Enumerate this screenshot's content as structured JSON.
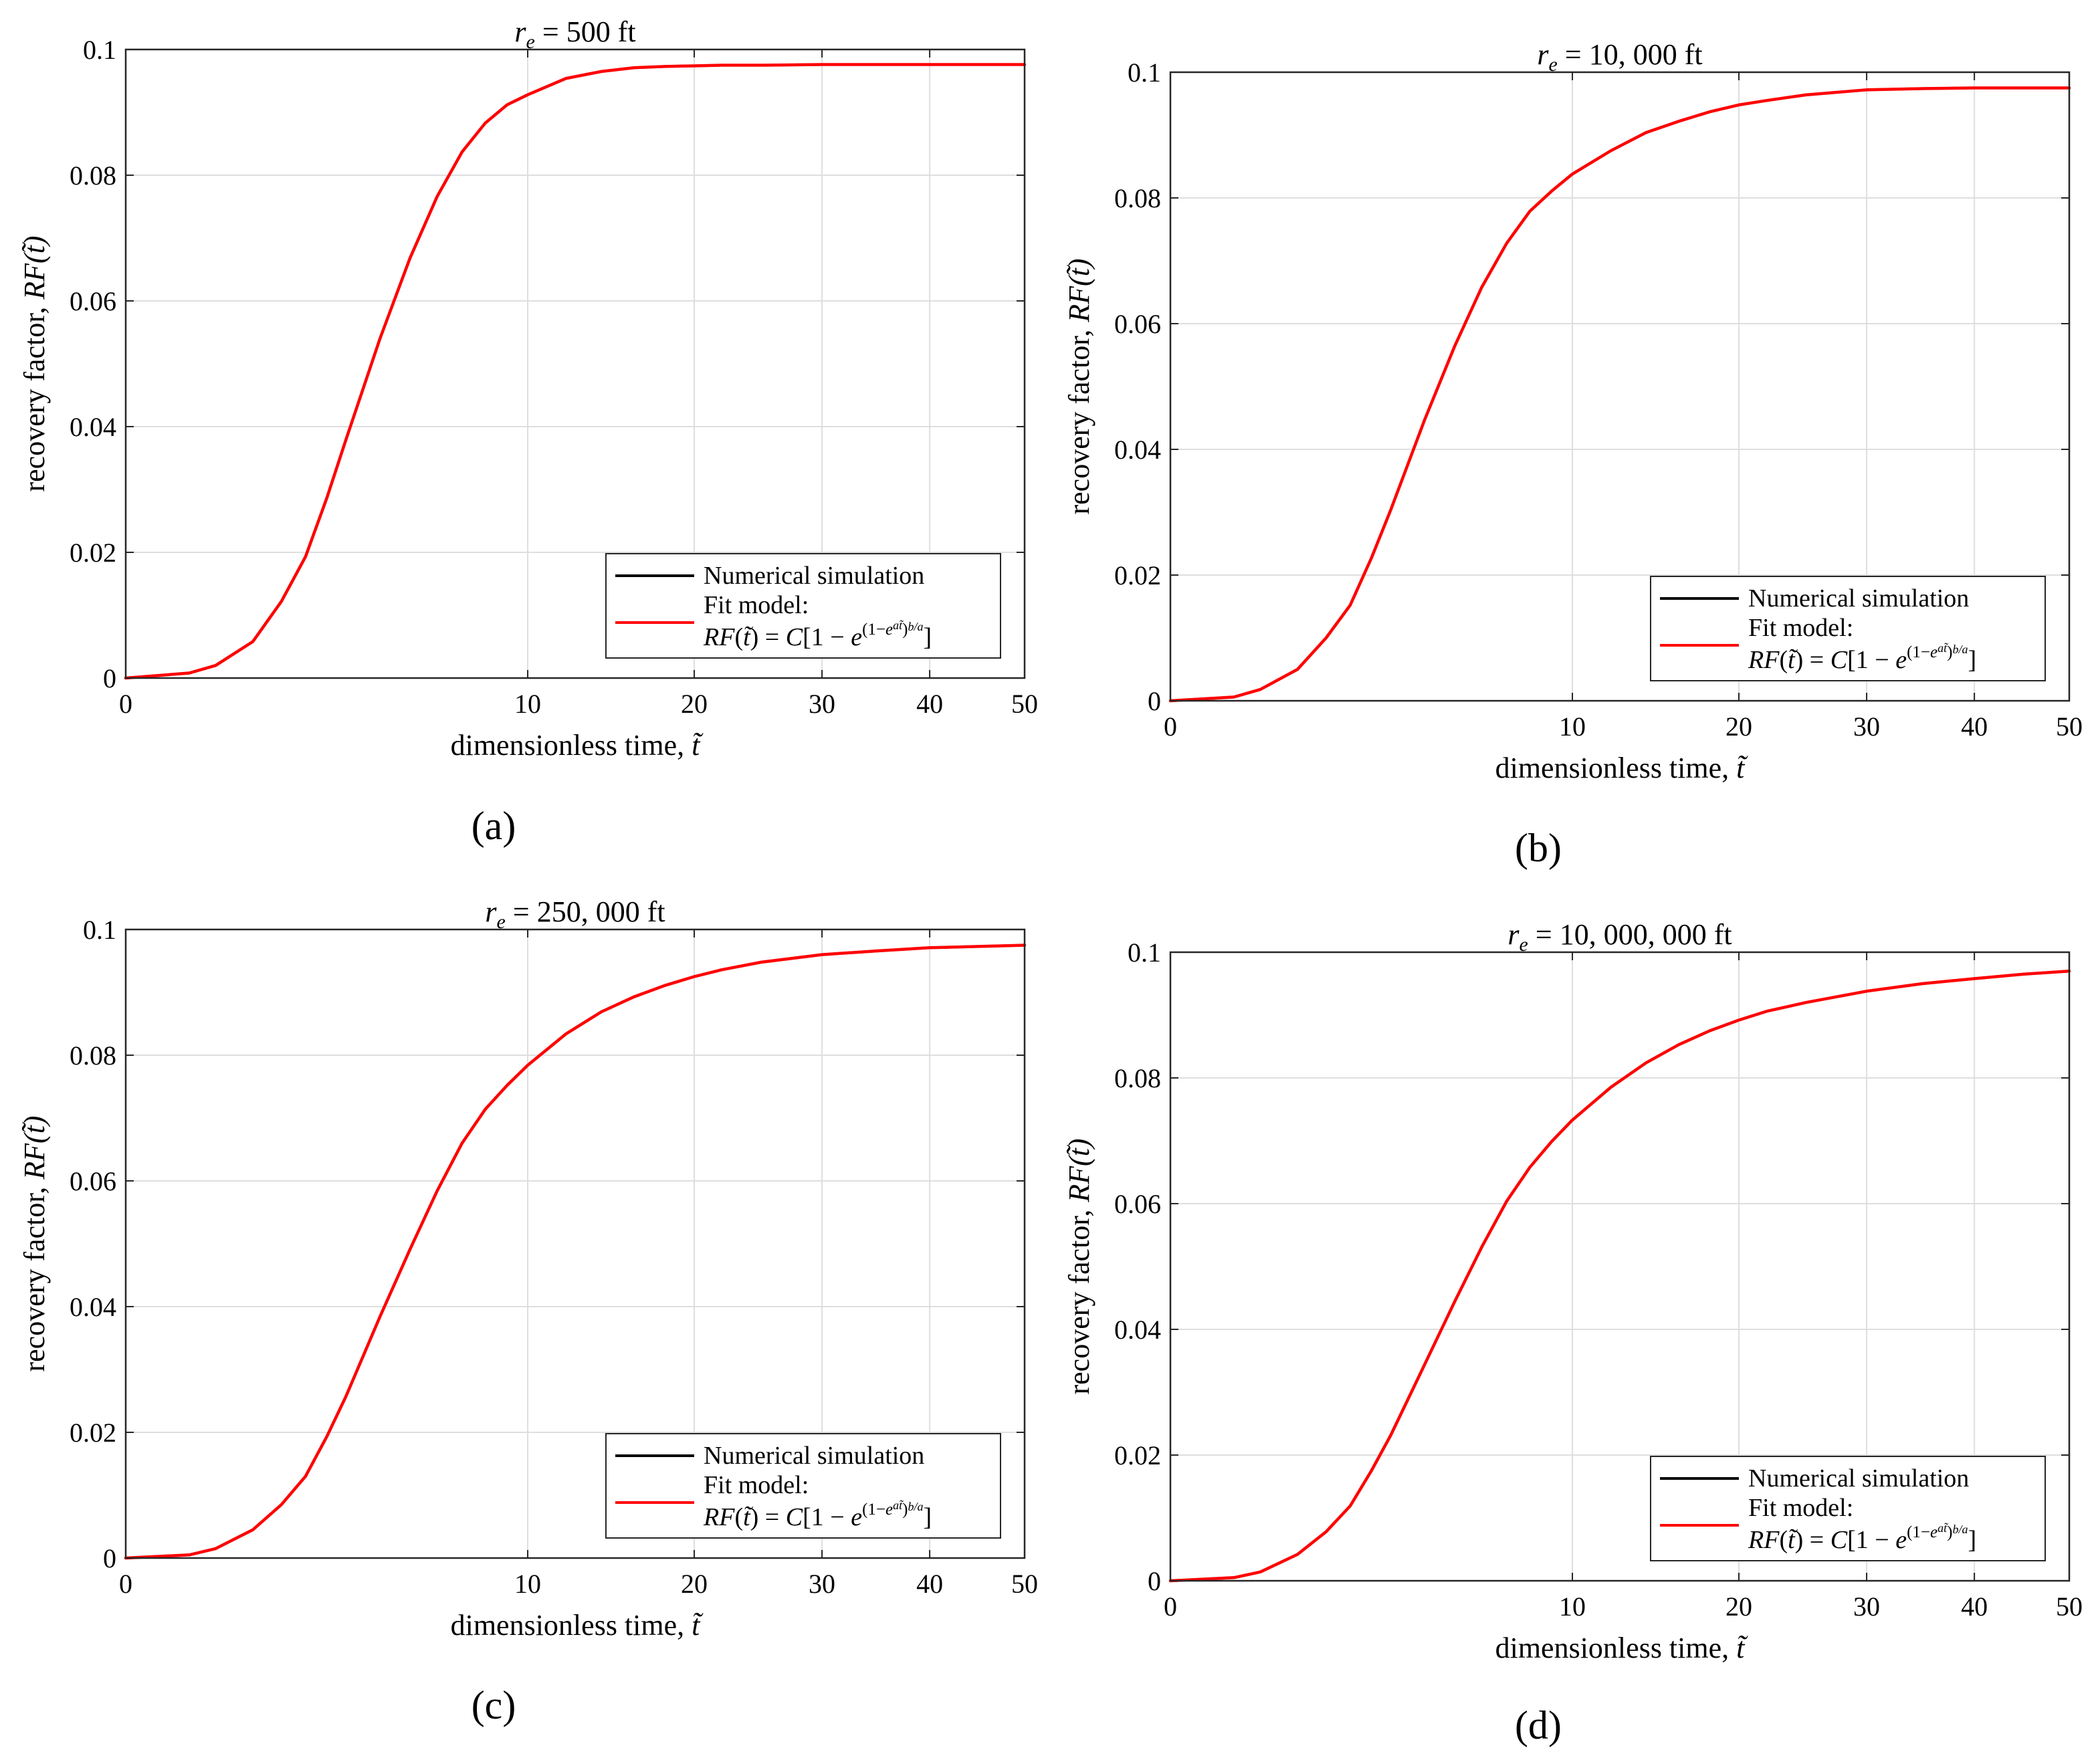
{
  "chart_data": [
    {
      "type": "line",
      "panel_label": "(a)",
      "title": "r_e = 500 ft",
      "title_var": "r",
      "title_sub": "e",
      "title_rest": " = 500 ft",
      "xlabel": "dimensionless time, t̃",
      "xlabel_text": "dimensionless time, ",
      "xlabel_var": "t̃",
      "ylabel": "recovery factor, RF(t̃)",
      "ylabel_text": "recovery factor, ",
      "ylabel_var": "RF(t̃)",
      "x_scale": "sqrt",
      "xlim": [
        0,
        50
      ],
      "ylim": [
        0,
        0.1
      ],
      "xticks": [
        0,
        10,
        20,
        30,
        40,
        50
      ],
      "yticks": [
        0,
        0.02,
        0.04,
        0.06,
        0.08,
        0.1
      ],
      "xtick_labels": [
        "0",
        "10",
        "20",
        "30",
        "40",
        "50"
      ],
      "ytick_labels": [
        "0",
        "0.02",
        "0.04",
        "0.06",
        "0.08",
        "0.1"
      ],
      "grid": true,
      "legend_position": "bottom-right",
      "legend": [
        "Numerical simulation",
        "Fit model:",
        "RF(t̃) = C[1 − e^{(1−e^{at̃})b/a}]"
      ],
      "series": [
        {
          "name": "Numerical simulation",
          "color": "#000000",
          "x": [
            0,
            0.25,
            0.5,
            1,
            1.5,
            2,
            2.5,
            3,
            4,
            5,
            6,
            7,
            8,
            9,
            10,
            12,
            14,
            16,
            18,
            20,
            22,
            25,
            30,
            35,
            40,
            45,
            50
          ],
          "y": [
            0,
            0.0008,
            0.002,
            0.0058,
            0.0122,
            0.0193,
            0.0286,
            0.0379,
            0.054,
            0.0668,
            0.0766,
            0.0837,
            0.0883,
            0.0912,
            0.0928,
            0.0954,
            0.0965,
            0.0971,
            0.0973,
            0.0974,
            0.0975,
            0.0975,
            0.0976,
            0.0976,
            0.0976,
            0.0976,
            0.0976
          ]
        },
        {
          "name": "Fit model",
          "color": "#ff0000",
          "x": [
            0,
            0.25,
            0.5,
            1,
            1.5,
            2,
            2.5,
            3,
            4,
            5,
            6,
            7,
            8,
            9,
            10,
            12,
            14,
            16,
            18,
            20,
            22,
            25,
            30,
            35,
            40,
            45,
            50
          ],
          "y": [
            0,
            0.0008,
            0.002,
            0.0058,
            0.0122,
            0.0193,
            0.0286,
            0.0379,
            0.054,
            0.0668,
            0.0766,
            0.0837,
            0.0883,
            0.0912,
            0.0928,
            0.0954,
            0.0965,
            0.0971,
            0.0973,
            0.0974,
            0.0975,
            0.0975,
            0.0976,
            0.0976,
            0.0976,
            0.0976,
            0.0976
          ]
        }
      ]
    },
    {
      "type": "line",
      "panel_label": "(b)",
      "title": "r_e = 10,000 ft",
      "title_var": "r",
      "title_sub": "e",
      "title_rest": " = 10, 000 ft",
      "xlabel": "dimensionless time, t̃",
      "xlabel_text": "dimensionless time, ",
      "xlabel_var": "t̃",
      "ylabel": "recovery factor, RF(t̃)",
      "ylabel_text": "recovery factor, ",
      "ylabel_var": "RF(t̃)",
      "x_scale": "sqrt",
      "xlim": [
        0,
        50
      ],
      "ylim": [
        0,
        0.1
      ],
      "xticks": [
        0,
        10,
        20,
        30,
        40,
        50
      ],
      "yticks": [
        0,
        0.02,
        0.04,
        0.06,
        0.08,
        0.1
      ],
      "xtick_labels": [
        "0",
        "10",
        "20",
        "30",
        "40",
        "50"
      ],
      "ytick_labels": [
        "0",
        "0.02",
        "0.04",
        "0.06",
        "0.08",
        "0.1"
      ],
      "grid": true,
      "legend_position": "bottom-right",
      "legend": [
        "Numerical simulation",
        "Fit model:",
        "RF(t̃) = C[1 − e^{(1−e^{at̃})b/a}]"
      ],
      "series": [
        {
          "name": "Numerical simulation",
          "color": "#000000",
          "x": [
            0,
            0.25,
            0.5,
            1,
            1.5,
            2,
            2.5,
            3,
            4,
            5,
            6,
            7,
            8,
            9,
            10,
            12,
            14,
            16,
            18,
            20,
            22,
            25,
            30,
            35,
            40,
            45,
            50
          ],
          "y": [
            0,
            0.0006,
            0.0018,
            0.005,
            0.01,
            0.0152,
            0.0227,
            0.0303,
            0.0447,
            0.0564,
            0.0658,
            0.0728,
            0.0779,
            0.0811,
            0.0838,
            0.0875,
            0.0904,
            0.0922,
            0.0937,
            0.0948,
            0.0955,
            0.0964,
            0.0972,
            0.0974,
            0.0975,
            0.0975,
            0.0975
          ]
        },
        {
          "name": "Fit model",
          "color": "#ff0000",
          "x": [
            0,
            0.25,
            0.5,
            1,
            1.5,
            2,
            2.5,
            3,
            4,
            5,
            6,
            7,
            8,
            9,
            10,
            12,
            14,
            16,
            18,
            20,
            22,
            25,
            30,
            35,
            40,
            45,
            50
          ],
          "y": [
            0,
            0.0006,
            0.0018,
            0.005,
            0.01,
            0.0152,
            0.0227,
            0.0303,
            0.0447,
            0.0564,
            0.0658,
            0.0728,
            0.0779,
            0.0811,
            0.0838,
            0.0875,
            0.0904,
            0.0922,
            0.0937,
            0.0948,
            0.0955,
            0.0964,
            0.0972,
            0.0974,
            0.0975,
            0.0975,
            0.0975
          ]
        }
      ]
    },
    {
      "type": "line",
      "panel_label": "(c)",
      "title": "r_e = 250,000 ft",
      "title_var": "r",
      "title_sub": "e",
      "title_rest": " = 250, 000 ft",
      "xlabel": "dimensionless time, t̃",
      "xlabel_text": "dimensionless time, ",
      "xlabel_var": "t̃",
      "ylabel": "recovery factor, RF(t̃)",
      "ylabel_text": "recovery factor, ",
      "ylabel_var": "RF(t̃)",
      "x_scale": "sqrt",
      "xlim": [
        0,
        50
      ],
      "ylim": [
        0,
        0.1
      ],
      "xticks": [
        0,
        10,
        20,
        30,
        40,
        50
      ],
      "yticks": [
        0,
        0.02,
        0.04,
        0.06,
        0.08,
        0.1
      ],
      "xtick_labels": [
        "0",
        "10",
        "20",
        "30",
        "40",
        "50"
      ],
      "ytick_labels": [
        "0",
        "0.02",
        "0.04",
        "0.06",
        "0.08",
        "0.1"
      ],
      "grid": true,
      "legend_position": "bottom-right",
      "legend": [
        "Numerical simulation",
        "Fit model:",
        "RF(t̃) = C[1 − e^{(1−e^{at̃})b/a}]"
      ],
      "series": [
        {
          "name": "Numerical simulation",
          "color": "#000000",
          "x": [
            0,
            0.25,
            0.5,
            1,
            1.5,
            2,
            2.5,
            3,
            4,
            5,
            6,
            7,
            8,
            9,
            10,
            12,
            14,
            16,
            18,
            20,
            22,
            25,
            30,
            35,
            40,
            45,
            50
          ],
          "y": [
            0,
            0.0005,
            0.0015,
            0.0045,
            0.0085,
            0.013,
            0.0193,
            0.0257,
            0.0384,
            0.0491,
            0.0584,
            0.066,
            0.0714,
            0.0752,
            0.0784,
            0.0834,
            0.0869,
            0.0893,
            0.0911,
            0.0925,
            0.0936,
            0.0948,
            0.096,
            0.0966,
            0.0971,
            0.0973,
            0.0975
          ]
        },
        {
          "name": "Fit model",
          "color": "#ff0000",
          "x": [
            0,
            0.25,
            0.5,
            1,
            1.5,
            2,
            2.5,
            3,
            4,
            5,
            6,
            7,
            8,
            9,
            10,
            12,
            14,
            16,
            18,
            20,
            22,
            25,
            30,
            35,
            40,
            45,
            50
          ],
          "y": [
            0,
            0.0005,
            0.0015,
            0.0045,
            0.0085,
            0.013,
            0.0193,
            0.0257,
            0.0384,
            0.0491,
            0.0584,
            0.066,
            0.0714,
            0.0752,
            0.0784,
            0.0834,
            0.0869,
            0.0893,
            0.0911,
            0.0925,
            0.0936,
            0.0948,
            0.096,
            0.0966,
            0.0971,
            0.0973,
            0.0975
          ]
        }
      ]
    },
    {
      "type": "line",
      "panel_label": "(d)",
      "title": "r_e = 10,000,000 ft",
      "title_var": "r",
      "title_sub": "e",
      "title_rest": " = 10, 000, 000 ft",
      "xlabel": "dimensionless time, t̃",
      "xlabel_text": "dimensionless time, ",
      "xlabel_var": "t̃",
      "ylabel": "recovery factor, RF(t̃)",
      "ylabel_text": "recovery factor, ",
      "ylabel_var": "RF(t̃)",
      "x_scale": "sqrt",
      "xlim": [
        0,
        50
      ],
      "ylim": [
        0,
        0.1
      ],
      "xticks": [
        0,
        10,
        20,
        30,
        40,
        50
      ],
      "yticks": [
        0,
        0.02,
        0.04,
        0.06,
        0.08,
        0.1
      ],
      "xtick_labels": [
        "0",
        "10",
        "20",
        "30",
        "40",
        "50"
      ],
      "ytick_labels": [
        "0",
        "0.02",
        "0.04",
        "0.06",
        "0.08",
        "0.1"
      ],
      "grid": true,
      "legend_position": "bottom-right",
      "legend": [
        "Numerical simulation",
        "Fit model:",
        "RF(t̃) = C[1 − e^{(1−e^{at̃})b/a}]"
      ],
      "series": [
        {
          "name": "Numerical simulation",
          "color": "#000000",
          "x": [
            0,
            0.25,
            0.5,
            1,
            1.5,
            2,
            2.5,
            3,
            4,
            5,
            6,
            7,
            8,
            9,
            10,
            12,
            14,
            16,
            18,
            20,
            22,
            25,
            30,
            35,
            40,
            45,
            50
          ],
          "y": [
            0,
            0.0005,
            0.0014,
            0.0042,
            0.0078,
            0.0119,
            0.0175,
            0.0231,
            0.0344,
            0.0444,
            0.0531,
            0.0604,
            0.0658,
            0.0699,
            0.0733,
            0.0785,
            0.0824,
            0.0853,
            0.0875,
            0.0892,
            0.0906,
            0.092,
            0.0938,
            0.095,
            0.0958,
            0.0965,
            0.097
          ]
        },
        {
          "name": "Fit model",
          "color": "#ff0000",
          "x": [
            0,
            0.25,
            0.5,
            1,
            1.5,
            2,
            2.5,
            3,
            4,
            5,
            6,
            7,
            8,
            9,
            10,
            12,
            14,
            16,
            18,
            20,
            22,
            25,
            30,
            35,
            40,
            45,
            50
          ],
          "y": [
            0,
            0.0005,
            0.0014,
            0.0042,
            0.0078,
            0.0119,
            0.0175,
            0.0231,
            0.0344,
            0.0444,
            0.0531,
            0.0604,
            0.0658,
            0.0699,
            0.0733,
            0.0785,
            0.0824,
            0.0853,
            0.0875,
            0.0892,
            0.0906,
            0.092,
            0.0938,
            0.095,
            0.0958,
            0.0965,
            0.097
          ]
        }
      ]
    }
  ]
}
